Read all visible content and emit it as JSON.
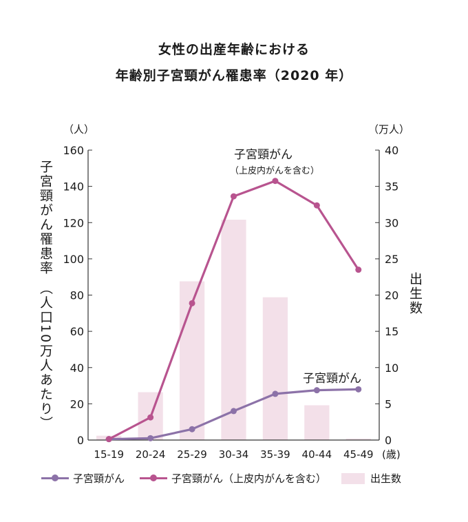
{
  "title_line1": "女性の出産年齢における",
  "title_line2": "年齢別子宮頸がん罹患率（2020 年）",
  "colors": {
    "cervical": "#8c72a8",
    "cervical_cis": "#b8548f",
    "births": "#f3e0e9",
    "axis": "#333333"
  },
  "chart_data": {
    "type": "bar",
    "categories": [
      "15-19",
      "20-24",
      "25-29",
      "30-34",
      "35-39",
      "40-44",
      "45-49"
    ],
    "x_unit": "(歳)",
    "y_left": {
      "label": "子宮頸がん罹患率 （人口10万人あたり）",
      "unit": "（人）",
      "lim": [
        0,
        160
      ],
      "ticks": [
        0,
        20,
        40,
        60,
        80,
        100,
        120,
        140,
        160
      ]
    },
    "y_right": {
      "label": "出生数",
      "unit": "（万人）",
      "lim": [
        0,
        40
      ],
      "ticks": [
        0,
        5,
        10,
        15,
        20,
        25,
        30,
        35,
        40
      ]
    },
    "series": [
      {
        "name": "出生数",
        "type": "bar",
        "axis": "right",
        "values": [
          0.6,
          6.6,
          21.9,
          30.4,
          19.7,
          4.8,
          0.2
        ]
      },
      {
        "name": "子宮頸がん",
        "type": "line",
        "axis": "left",
        "values": [
          0.5,
          1.0,
          6.0,
          16.0,
          25.5,
          27.5,
          28.0
        ],
        "annotation": "子宮頸がん"
      },
      {
        "name": "子宮頸がん（上皮内がんを含む）",
        "type": "line",
        "axis": "left",
        "values": [
          0.5,
          12.5,
          75.5,
          134.5,
          143.0,
          129.5,
          94.0
        ],
        "annotation": [
          "子宮頸がん",
          "（上皮内がんを含む）"
        ]
      }
    ],
    "legend_position": "bottom"
  },
  "legend": {
    "cervical": "子宮頸がん",
    "cervical_cis": "子宮頸がん（上皮内がんを含む）",
    "births": "出生数"
  }
}
